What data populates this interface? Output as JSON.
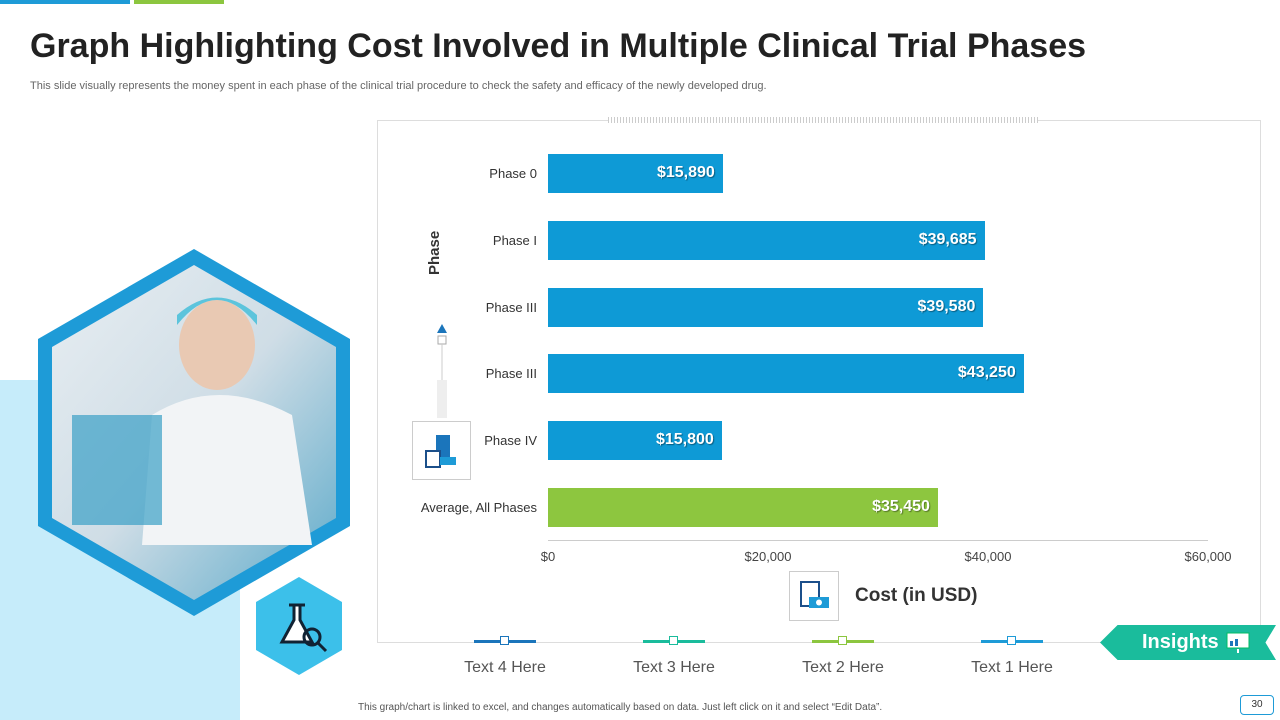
{
  "title": "Graph Highlighting Cost Involved in Multiple Clinical Trial Phases",
  "subtitle": "This slide visually represents the money spent in each phase of the clinical trial procedure to check the safety and efficacy of the newly developed drug.",
  "chart_data": {
    "type": "bar",
    "orientation": "horizontal",
    "categories": [
      "Phase 0",
      "Phase I",
      "Phase III",
      "Phase III",
      "Phase IV",
      "Average, All Phases"
    ],
    "values": [
      15890,
      39685,
      39580,
      43250,
      15800,
      35450
    ],
    "labels": [
      "$15,890",
      "$39,685",
      "$39,580",
      "$43,250",
      "$15,800",
      "$35,450"
    ],
    "colors": [
      "#0e9ad6",
      "#0e9ad6",
      "#0e9ad6",
      "#0e9ad6",
      "#0e9ad6",
      "#8dc63f"
    ],
    "xlabel": "Cost (in USD)",
    "ylabel": "Phase",
    "xlim": [
      0,
      60000
    ],
    "xticks": [
      "$0",
      "$20,000",
      "$40,000",
      "$60,000"
    ],
    "xtick_values": [
      0,
      20000,
      40000,
      60000
    ]
  },
  "legend": [
    {
      "label": "Text 4 Here",
      "color": "#1b75bb"
    },
    {
      "label": "Text 3 Here",
      "color": "#1abc9c"
    },
    {
      "label": "Text 2 Here",
      "color": "#8cc63f"
    },
    {
      "label": "Text 1 Here",
      "color": "#1e9bd7"
    }
  ],
  "insights": "Insights",
  "footer": "This graph/chart is linked to excel, and changes automatically based on data. Just left click on it and select “Edit Data”.",
  "page_number": "30"
}
